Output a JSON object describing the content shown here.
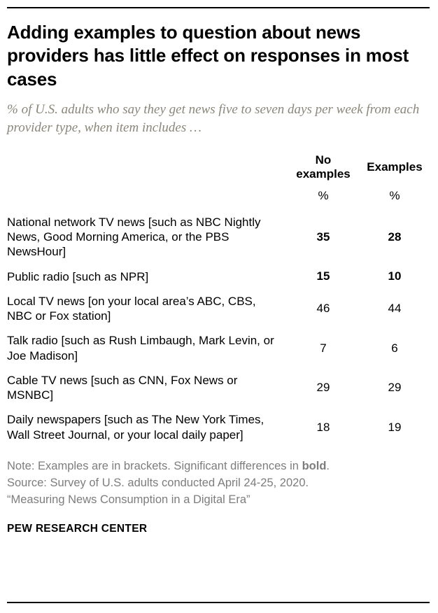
{
  "chart_data": {
    "type": "table",
    "title": "Adding examples to question about news providers has little effect on responses in most cases",
    "subtitle": "% of U.S. adults who say they get news five to seven days per week from each provider type, when item includes …",
    "columns": [
      "No examples",
      "Examples"
    ],
    "unit": "%",
    "rows": [
      {
        "label": "National network TV news [such as NBC Nightly News, Good Morning America, or the PBS NewsHour]",
        "no_examples": 35,
        "examples": 28,
        "bold": true
      },
      {
        "label": "Public radio [such as NPR]",
        "no_examples": 15,
        "examples": 10,
        "bold": true
      },
      {
        "label": "Local TV news [on your local area’s ABC, CBS, NBC or Fox station]",
        "no_examples": 46,
        "examples": 44,
        "bold": false
      },
      {
        "label": "Talk radio [such as Rush Limbaugh, Mark Levin, or Joe Madison]",
        "no_examples": 7,
        "examples": 6,
        "bold": false
      },
      {
        "label": "Cable TV news [such as CNN, Fox News or MSNBC]",
        "no_examples": 29,
        "examples": 29,
        "bold": false
      },
      {
        "label": "Daily newspapers [such as The New York Times, Wall Street Journal, or your local daily paper]",
        "no_examples": 18,
        "examples": 19,
        "bold": false
      }
    ],
    "legend_position": "none",
    "grid": false
  },
  "notes": {
    "note_prefix": "Note: Examples are in brackets. Significant differences in ",
    "note_bold": "bold",
    "note_suffix": ".",
    "source": "Source: Survey of U.S. adults conducted April 24-25, 2020.",
    "report": "“Measuring News Consumption in a Digital Era”"
  },
  "footer": {
    "brand": "PEW RESEARCH CENTER"
  }
}
